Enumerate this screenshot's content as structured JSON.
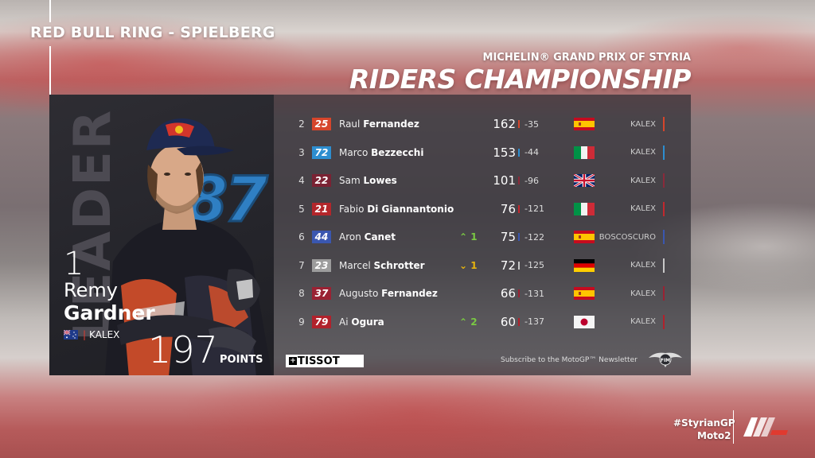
{
  "venue": "RED BULL RING - SPIELBERG",
  "gp_name": "MICHELIN® GRAND PRIX OF STYRIA",
  "title": "RIDERS CHAMPIONSHIP",
  "leader": {
    "label": "LEADER",
    "position": "1",
    "first_name": "Remy",
    "last_name": "Gardner",
    "team": "KALEX",
    "number": "87",
    "points": "197",
    "points_label": "POINTS",
    "flag": "australia-flag"
  },
  "standings": [
    {
      "pos": "2",
      "number": "25",
      "first": "Raul",
      "last": "Fernandez",
      "move": "",
      "move_dir": "",
      "points": "162",
      "gap": "-35",
      "flag": "spain",
      "team": "KALEX",
      "color": "#d6452b",
      "tick": "#d6452b"
    },
    {
      "pos": "3",
      "number": "72",
      "first": "Marco",
      "last": "Bezzecchi",
      "move": "",
      "move_dir": "",
      "points": "153",
      "gap": "-44",
      "flag": "italy",
      "team": "KALEX",
      "color": "#2d8ed0",
      "tick": "#2d8ed0"
    },
    {
      "pos": "4",
      "number": "22",
      "first": "Sam",
      "last": "Lowes",
      "move": "",
      "move_dir": "",
      "points": "101",
      "gap": "-96",
      "flag": "uk",
      "team": "KALEX",
      "color": "#7a2233",
      "tick": "#8a2a3a"
    },
    {
      "pos": "5",
      "number": "21",
      "first": "Fabio",
      "last": "Di Giannantonio",
      "move": "",
      "move_dir": "",
      "points": "76",
      "gap": "-121",
      "flag": "italy",
      "team": "KALEX",
      "color": "#b3262b",
      "tick": "#c2282e"
    },
    {
      "pos": "6",
      "number": "44",
      "first": "Aron",
      "last": "Canet",
      "move": "1",
      "move_dir": "up",
      "points": "75",
      "gap": "-122",
      "flag": "spain",
      "team": "BOSCOSCURO",
      "color": "#3a57b0",
      "tick": "#3a57b0"
    },
    {
      "pos": "7",
      "number": "23",
      "first": "Marcel",
      "last": "Schrotter",
      "move": "1",
      "move_dir": "down",
      "points": "72",
      "gap": "-125",
      "flag": "germany",
      "team": "KALEX",
      "color": "#9c9c9c",
      "tick": "#c8c8c8"
    },
    {
      "pos": "8",
      "number": "37",
      "first": "Augusto",
      "last": "Fernandez",
      "move": "",
      "move_dir": "",
      "points": "66",
      "gap": "-131",
      "flag": "spain",
      "team": "KALEX",
      "color": "#9a2233",
      "tick": "#9a2233"
    },
    {
      "pos": "9",
      "number": "79",
      "first": "Ai",
      "last": "Ogura",
      "move": "2",
      "move_dir": "up",
      "points": "60",
      "gap": "-137",
      "flag": "japan",
      "team": "KALEX",
      "color": "#b1222c",
      "tick": "#b1222c"
    }
  ],
  "sponsor": "TISSOT",
  "subscribe": "Subscribe to the MotoGP™ Newsletter",
  "hashtag": "#StyrianGP",
  "class_label": "Moto2",
  "fim_logo": "fim-logo",
  "motogp_logo": "motogp-logo"
}
